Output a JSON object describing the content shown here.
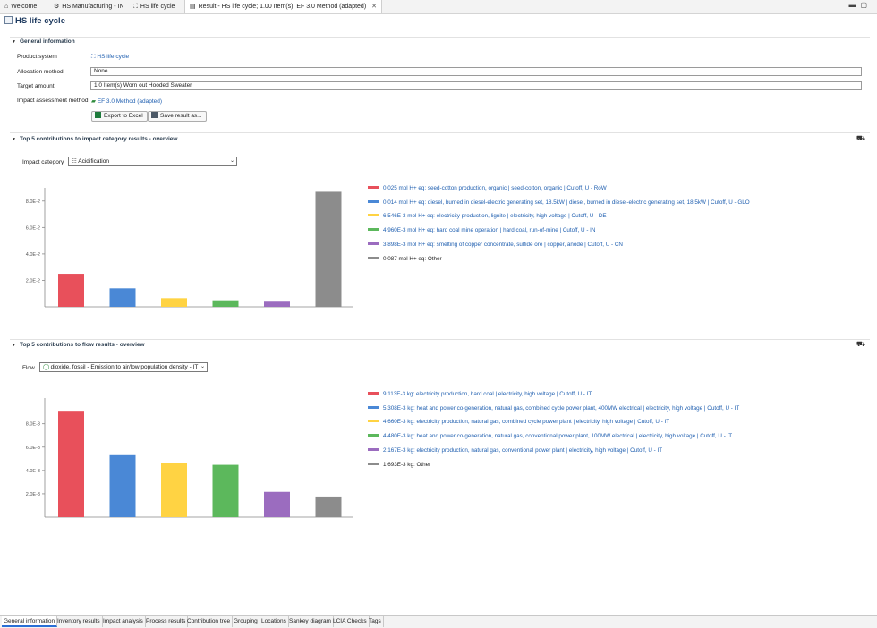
{
  "tabs": [
    {
      "icon": "home-icon",
      "glyph": "⌂",
      "label": "Welcome"
    },
    {
      "icon": "process-icon",
      "glyph": "⚙",
      "label": "HS Manufacturing - IN"
    },
    {
      "icon": "product-system-icon",
      "glyph": "⛶",
      "label": "HS life cycle"
    },
    {
      "icon": "result-icon",
      "glyph": "▤",
      "label": "Result - HS life cycle; 1.00 Item(s); EF 3.0 Method (adapted)"
    }
  ],
  "header": {
    "title": "HS life cycle"
  },
  "general": {
    "section_title": "General information",
    "product_system_label": "Product system",
    "product_system_value": "HS life cycle",
    "allocation_label": "Allocation method",
    "allocation_value": "None",
    "target_label": "Target amount",
    "target_value": "1.0 Item(s) Worn out Hooded Sweater",
    "method_label": "Impact assessment method",
    "method_value": "EF 3.0 Method (adapted)",
    "export_label": "Export to Excel",
    "save_label": "Save result as..."
  },
  "impact": {
    "section_title": "Top 5 contributions to impact category results - overview",
    "category_label": "Impact category",
    "category_value": "Acidification"
  },
  "flow": {
    "section_title": "Top 5 contributions to flow results - overview",
    "flow_label": "Flow",
    "flow_value": " dioxide, fossil - Emission to air/low population density - IT"
  },
  "chart_data": [
    {
      "type": "bar",
      "ylim": [
        0,
        0.09
      ],
      "yticks": [
        0.02,
        0.04,
        0.06,
        0.08
      ],
      "yticklabels": [
        "2.0E-2",
        "4.0E-2",
        "6.0E-2",
        "8.0E-2"
      ],
      "values": [
        0.025,
        0.014,
        0.006546,
        0.00496,
        0.003898,
        0.087
      ],
      "colors": [
        "#e8505b",
        "#4a88d6",
        "#ffd343",
        "#5cb85c",
        "#9b6cbf",
        "#8c8c8c"
      ],
      "legend": [
        "0.025 mol H+ eq: seed-cotton production, organic | seed-cotton, organic | Cutoff, U - RoW",
        "0.014 mol H+ eq: diesel, burned in diesel-electric generating set, 18.5kW | diesel, burned in diesel-electric generating set, 18.5kW | Cutoff, U - GLO",
        "6.546E-3 mol H+ eq: electricity production, lignite | electricity, high voltage | Cutoff, U - DE",
        "4.960E-3 mol H+ eq: hard coal mine operation | hard coal, run-of-mine | Cutoff, U - IN",
        "3.898E-3 mol H+ eq: smelting of copper concentrate, sulfide ore | copper, anode | Cutoff, U - CN",
        "0.087 mol H+ eq: Other"
      ]
    },
    {
      "type": "bar",
      "ylim": [
        0,
        0.0102
      ],
      "yticks": [
        0.002,
        0.004,
        0.006,
        0.008
      ],
      "yticklabels": [
        "2.0E-3",
        "4.0E-3",
        "6.0E-3",
        "8.0E-3"
      ],
      "values": [
        0.009113,
        0.005308,
        0.00466,
        0.00448,
        0.002167,
        0.001693
      ],
      "colors": [
        "#e8505b",
        "#4a88d6",
        "#ffd343",
        "#5cb85c",
        "#9b6cbf",
        "#8c8c8c"
      ],
      "legend": [
        "9.113E-3 kg: electricity production, hard coal | electricity, high voltage | Cutoff, U - IT",
        "5.308E-3 kg: heat and power co-generation, natural gas, combined cycle power plant, 400MW electrical | electricity, high voltage | Cutoff, U - IT",
        "4.660E-3 kg: electricity production, natural gas, combined cycle power plant | electricity, high voltage | Cutoff, U - IT",
        "4.480E-3 kg: heat and power co-generation, natural gas, conventional power plant, 100MW electrical | electricity, high voltage | Cutoff, U - IT",
        "2.167E-3 kg: electricity production, natural gas, conventional power plant | electricity, high voltage | Cutoff, U - IT",
        "1.693E-3 kg: Other"
      ]
    }
  ],
  "bottom_tabs": [
    "General information",
    "Inventory results",
    "Impact analysis",
    "Process results",
    "Contribution tree",
    "Grouping",
    "Locations",
    "Sankey diagram",
    "LCIA Checks",
    "Tags"
  ]
}
